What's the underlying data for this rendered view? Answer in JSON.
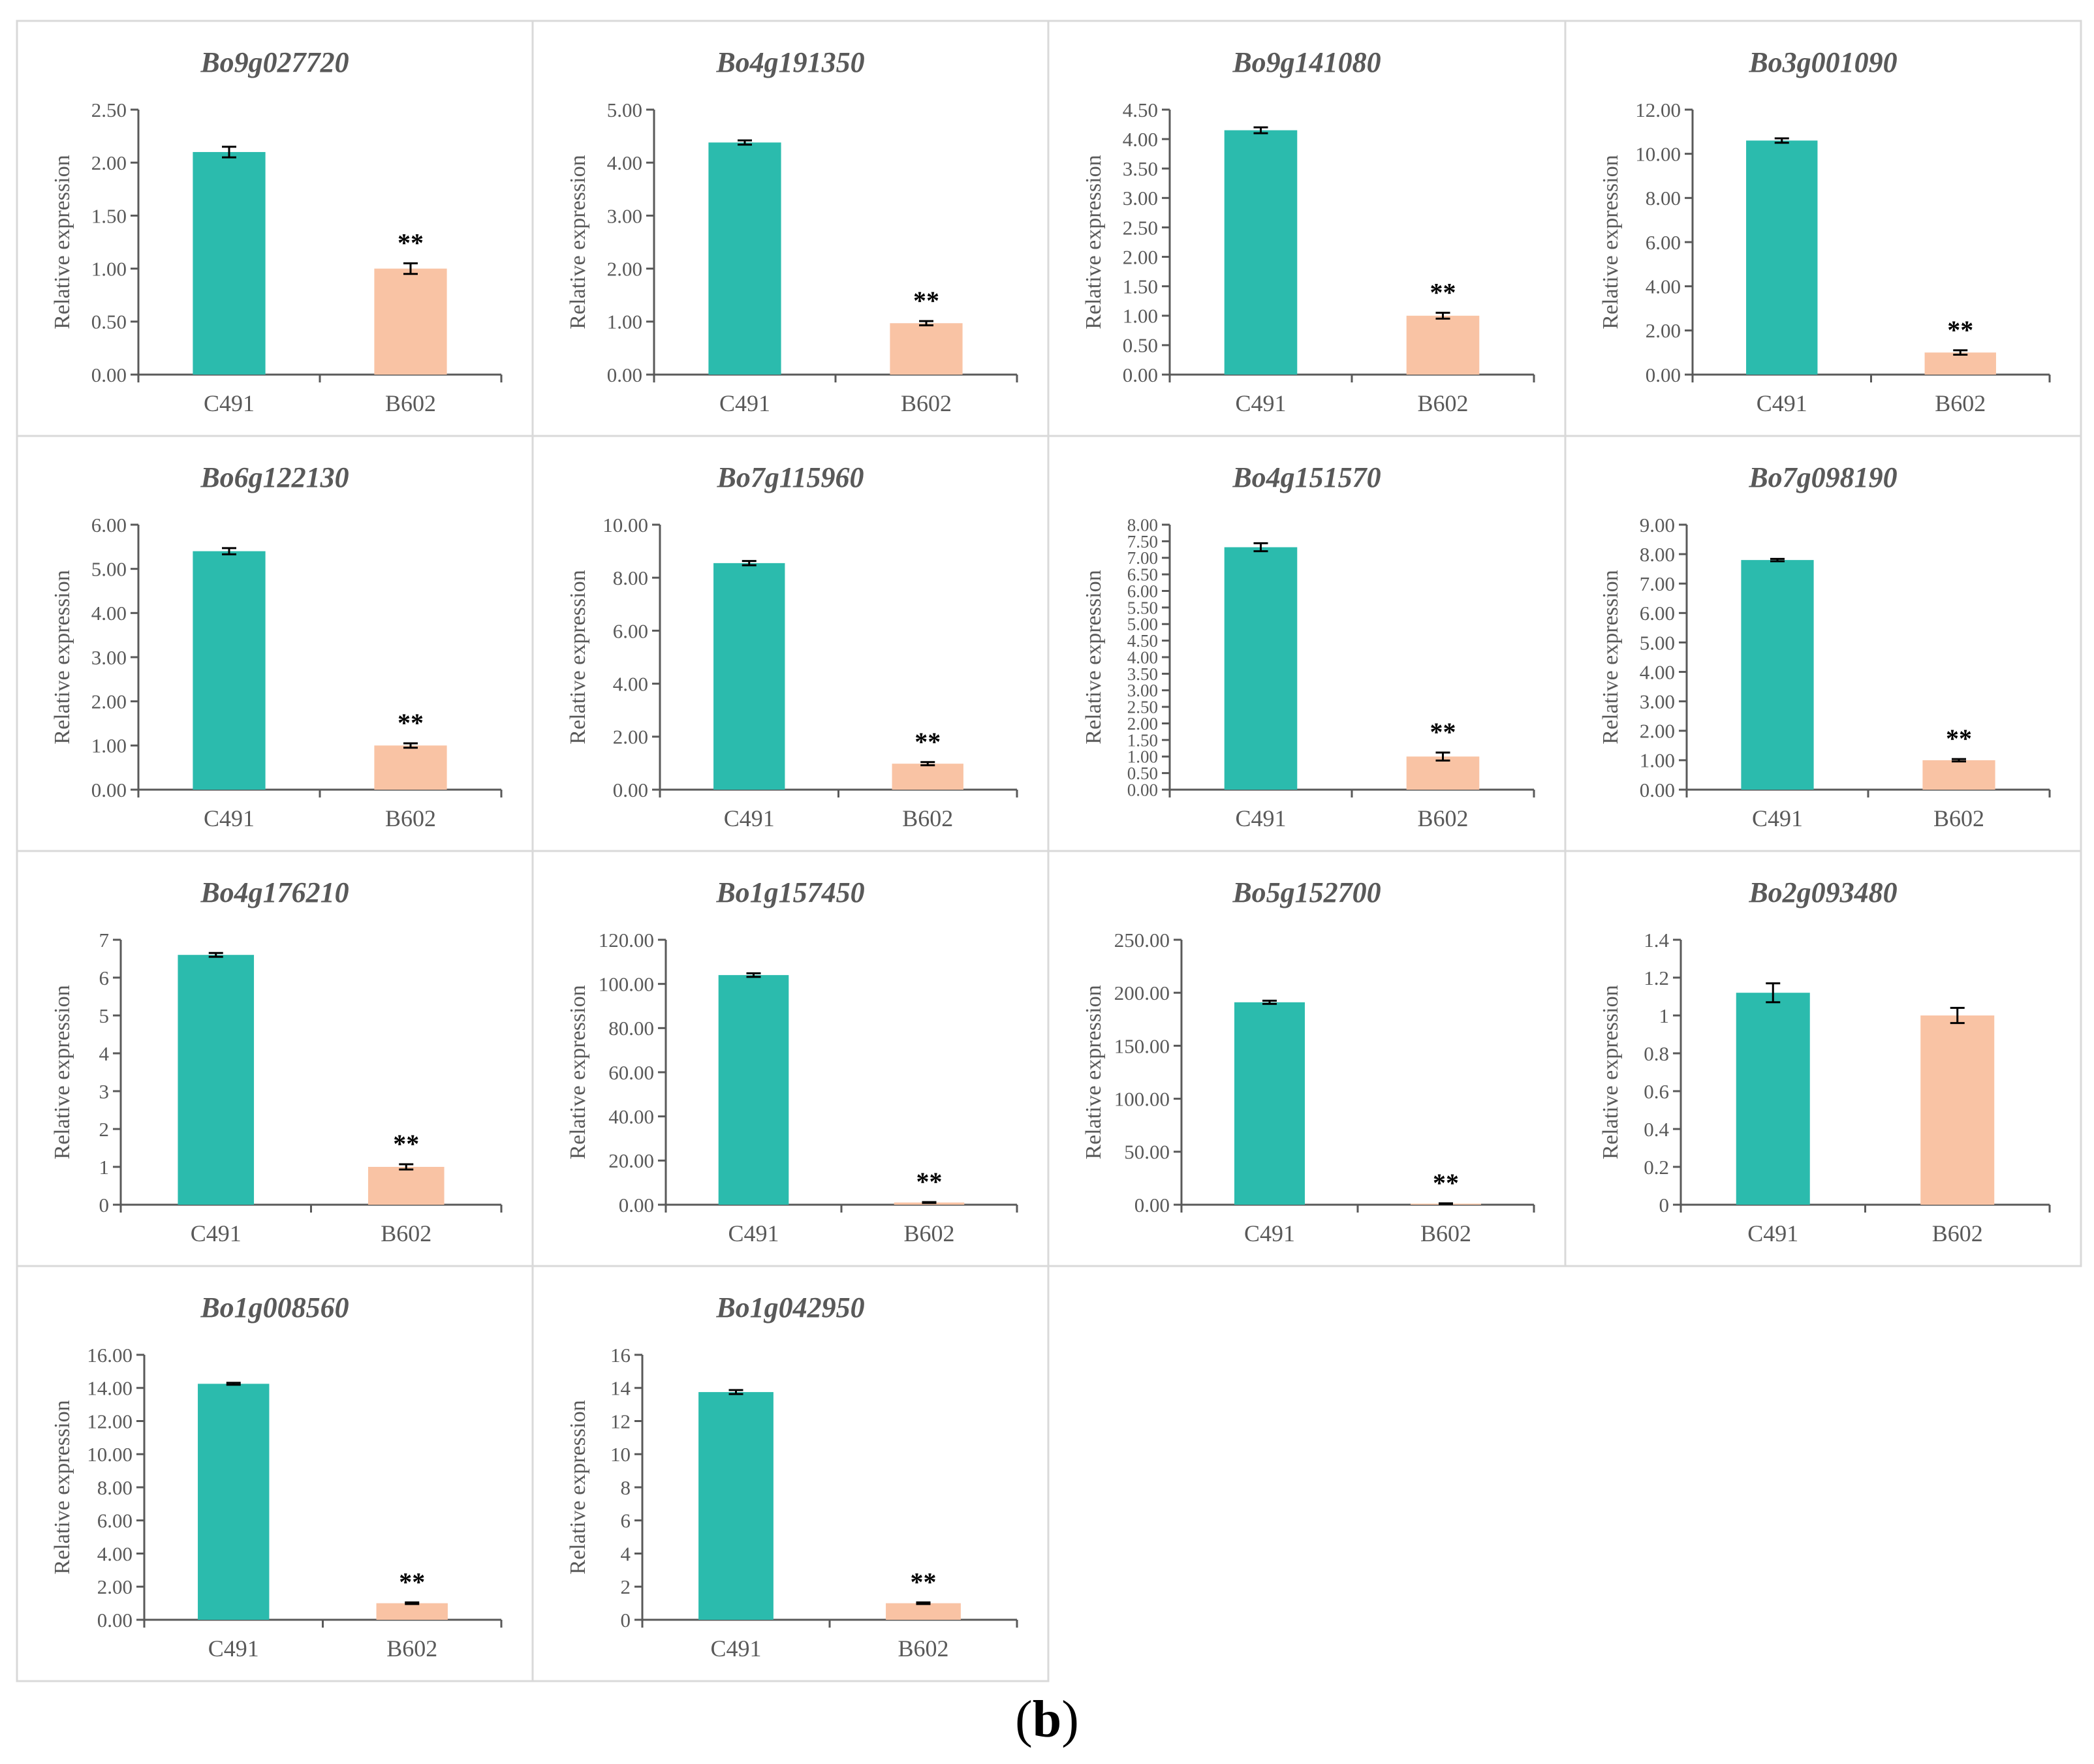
{
  "figure": {
    "caption_open": "(",
    "caption_letter": "b",
    "caption_close": ")",
    "colors": {
      "c491": "#2bbbad",
      "b602": "#f9c3a4",
      "axis": "#595959",
      "border": "#d9d9d9",
      "text": "#595959",
      "title": "#595959"
    }
  },
  "chart_data": [
    {
      "type": "bar",
      "title": "Bo9g027720",
      "ylabel": "Relative expression",
      "categories": [
        "C491",
        "B602"
      ],
      "values": [
        2.1,
        1.0
      ],
      "errors": [
        0.05,
        0.05
      ],
      "ylim": [
        0,
        2.5
      ],
      "yticks": [
        "0.00",
        "0.50",
        "1.00",
        "1.50",
        "2.00",
        "2.50"
      ],
      "significance": [
        "",
        "**"
      ],
      "grid": false
    },
    {
      "type": "bar",
      "title": "Bo4g191350",
      "ylabel": "Relative expression",
      "categories": [
        "C491",
        "B602"
      ],
      "values": [
        4.38,
        0.97
      ],
      "errors": [
        0.04,
        0.04
      ],
      "ylim": [
        0,
        5
      ],
      "yticks": [
        "0.00",
        "1.00",
        "2.00",
        "3.00",
        "4.00",
        "5.00"
      ],
      "significance": [
        "",
        "**"
      ],
      "grid": false
    },
    {
      "type": "bar",
      "title": "Bo9g141080",
      "ylabel": "Relative expression",
      "categories": [
        "C491",
        "B602"
      ],
      "values": [
        4.15,
        1.0
      ],
      "errors": [
        0.05,
        0.05
      ],
      "ylim": [
        0,
        4.5
      ],
      "yticks": [
        "0.00",
        "0.50",
        "1.00",
        "1.50",
        "2.00",
        "2.50",
        "3.00",
        "3.50",
        "4.00",
        "4.50"
      ],
      "significance": [
        "",
        "**"
      ],
      "grid": false
    },
    {
      "type": "bar",
      "title": "Bo3g001090",
      "ylabel": "Relative expression",
      "categories": [
        "C491",
        "B602"
      ],
      "values": [
        10.6,
        1.0
      ],
      "errors": [
        0.1,
        0.1
      ],
      "ylim": [
        0,
        12
      ],
      "yticks": [
        "0.00",
        "2.00",
        "4.00",
        "6.00",
        "8.00",
        "10.00",
        "12.00"
      ],
      "significance": [
        "",
        "**"
      ],
      "grid": false
    },
    {
      "type": "bar",
      "title": "Bo6g122130",
      "ylabel": "Relative expression",
      "categories": [
        "C491",
        "B602"
      ],
      "values": [
        5.4,
        1.0
      ],
      "errors": [
        0.07,
        0.05
      ],
      "ylim": [
        0,
        6
      ],
      "yticks": [
        "0.00",
        "1.00",
        "2.00",
        "3.00",
        "4.00",
        "5.00",
        "6.00"
      ],
      "significance": [
        "",
        "**"
      ],
      "grid": false
    },
    {
      "type": "bar",
      "title": "Bo7g115960",
      "ylabel": "Relative expression",
      "categories": [
        "C491",
        "B602"
      ],
      "values": [
        8.55,
        0.98
      ],
      "errors": [
        0.08,
        0.06
      ],
      "ylim": [
        0,
        10
      ],
      "yticks": [
        "0.00",
        "2.00",
        "4.00",
        "6.00",
        "8.00",
        "10.00"
      ],
      "significance": [
        "",
        "**"
      ],
      "grid": false
    },
    {
      "type": "bar",
      "title": "Bo4g151570",
      "ylabel": "Relative expression",
      "categories": [
        "C491",
        "B602"
      ],
      "values": [
        7.32,
        1.0
      ],
      "errors": [
        0.12,
        0.12
      ],
      "ylim": [
        0,
        8
      ],
      "yticks": [
        "0.00",
        "0.50",
        "1.00",
        "1.50",
        "2.00",
        "2.50",
        "3.00",
        "3.50",
        "4.00",
        "4.50",
        "5.00",
        "5.50",
        "6.00",
        "6.50",
        "7.00",
        "7.50",
        "8.00"
      ],
      "significance": [
        "",
        "**"
      ],
      "grid": false
    },
    {
      "type": "bar",
      "title": "Bo7g098190",
      "ylabel": "Relative expression",
      "categories": [
        "C491",
        "B602"
      ],
      "values": [
        7.8,
        1.0
      ],
      "errors": [
        0.04,
        0.04
      ],
      "ylim": [
        0,
        9
      ],
      "yticks": [
        "0.00",
        "1.00",
        "2.00",
        "3.00",
        "4.00",
        "5.00",
        "6.00",
        "7.00",
        "8.00",
        "9.00"
      ],
      "significance": [
        "",
        "**"
      ],
      "grid": false
    },
    {
      "type": "bar",
      "title": "Bo4g176210",
      "ylabel": "Relative expression",
      "categories": [
        "C491",
        "B602"
      ],
      "values": [
        6.6,
        1.0
      ],
      "errors": [
        0.05,
        0.07
      ],
      "ylim": [
        0,
        7
      ],
      "yticks": [
        "0",
        "1",
        "2",
        "3",
        "4",
        "5",
        "6",
        "7"
      ],
      "significance": [
        "",
        "**"
      ],
      "grid": false
    },
    {
      "type": "bar",
      "title": "Bo1g157450",
      "ylabel": "Relative expression",
      "categories": [
        "C491",
        "B602"
      ],
      "values": [
        104.0,
        1.0
      ],
      "errors": [
        0.8,
        0.2
      ],
      "ylim": [
        0,
        120
      ],
      "yticks": [
        "0.00",
        "20.00",
        "40.00",
        "60.00",
        "80.00",
        "100.00",
        "120.00"
      ],
      "significance": [
        "",
        "**"
      ],
      "grid": false
    },
    {
      "type": "bar",
      "title": "Bo5g152700",
      "ylabel": "Relative expression",
      "categories": [
        "C491",
        "B602"
      ],
      "values": [
        191.0,
        1.0
      ],
      "errors": [
        1.5,
        0.3
      ],
      "ylim": [
        0,
        250
      ],
      "yticks": [
        "0.00",
        "50.00",
        "100.00",
        "150.00",
        "200.00",
        "250.00"
      ],
      "significance": [
        "",
        "**"
      ],
      "grid": false
    },
    {
      "type": "bar",
      "title": "Bo2g093480",
      "ylabel": "Relative expression",
      "categories": [
        "C491",
        "B602"
      ],
      "values": [
        1.12,
        1.0
      ],
      "errors": [
        0.05,
        0.04
      ],
      "ylim": [
        0,
        1.4
      ],
      "yticks": [
        "0",
        "0.2",
        "0.4",
        "0.6",
        "0.8",
        "1",
        "1.2",
        "1.4"
      ],
      "significance": [
        "",
        ""
      ],
      "grid": false
    },
    {
      "type": "bar",
      "title": "Bo1g008560",
      "ylabel": "Relative expression",
      "categories": [
        "C491",
        "B602"
      ],
      "values": [
        14.25,
        1.0
      ],
      "errors": [
        0.06,
        0.05
      ],
      "ylim": [
        0,
        16
      ],
      "yticks": [
        "0.00",
        "2.00",
        "4.00",
        "6.00",
        "8.00",
        "10.00",
        "12.00",
        "14.00",
        "16.00"
      ],
      "significance": [
        "",
        "**"
      ],
      "grid": false
    },
    {
      "type": "bar",
      "title": "Bo1g042950",
      "ylabel": "Relative expression",
      "categories": [
        "C491",
        "B602"
      ],
      "values": [
        13.75,
        1.0
      ],
      "errors": [
        0.12,
        0.05
      ],
      "ylim": [
        0,
        16
      ],
      "yticks": [
        "0",
        "2",
        "4",
        "6",
        "8",
        "10",
        "12",
        "14",
        "16"
      ],
      "significance": [
        "",
        "**"
      ],
      "grid": false
    }
  ]
}
